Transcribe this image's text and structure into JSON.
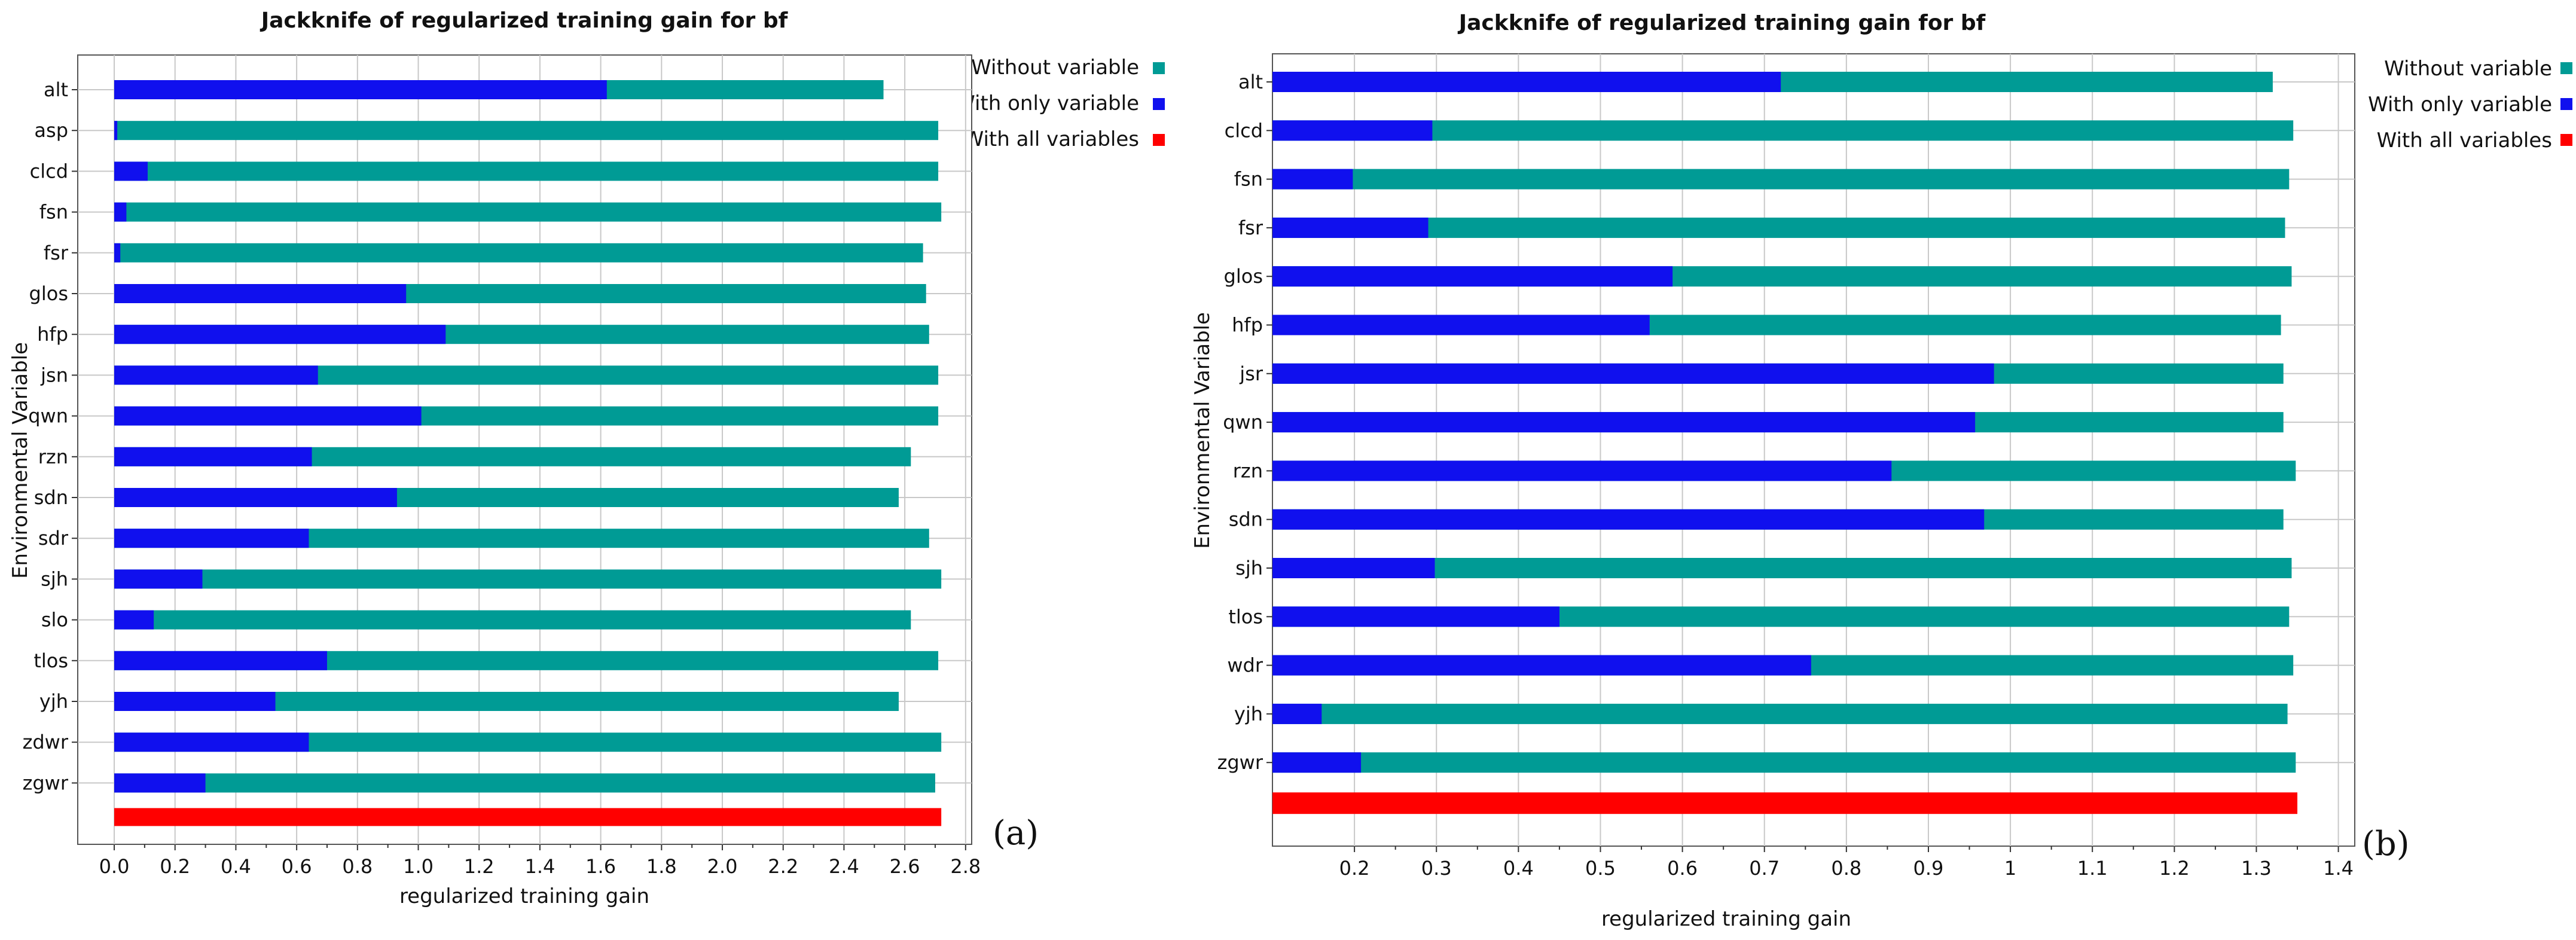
{
  "colors": {
    "without": "#009b95",
    "with_only": "#1010ee",
    "with_all": "#ff0000",
    "grid": "#c8c8c8",
    "frame": "#555555"
  },
  "legend": {
    "without_label": "Without variable",
    "with_only_label": "With only variable",
    "with_all_label": "With all variables"
  },
  "chart_data": [
    {
      "type": "bar",
      "orientation": "horizontal",
      "panel_label": "(a)",
      "title": "Jackknife of regularized training gain for bf",
      "xlabel": "regularized training gain",
      "ylabel": "Environmental Variable",
      "xlim": [
        -0.12,
        2.82
      ],
      "xticks": [
        "0.0",
        "0.2",
        "0.4",
        "0.6",
        "0.8",
        "1.0",
        "1.2",
        "1.4",
        "1.6",
        "1.8",
        "2.0",
        "2.2",
        "2.4",
        "2.6",
        "2.8"
      ],
      "xtick_values": [
        0,
        0.2,
        0.4,
        0.6,
        0.8,
        1.0,
        1.2,
        1.4,
        1.6,
        1.8,
        2.0,
        2.2,
        2.4,
        2.6,
        2.8
      ],
      "categories": [
        "alt",
        "asp",
        "clcd",
        "fsn",
        "fsr",
        "glos",
        "hfp",
        "jsn",
        "qwn",
        "rzn",
        "sdn",
        "sdr",
        "sjh",
        "slo",
        "tlos",
        "yjh",
        "zdwr",
        "zgwr"
      ],
      "series": [
        {
          "name": "Without variable",
          "values": [
            2.53,
            2.71,
            2.71,
            2.72,
            2.66,
            2.67,
            2.68,
            2.71,
            2.71,
            2.62,
            2.58,
            2.68,
            2.72,
            2.62,
            2.71,
            2.58,
            2.72,
            2.7
          ]
        },
        {
          "name": "With only variable",
          "values": [
            1.62,
            0.01,
            0.11,
            0.04,
            0.02,
            0.96,
            1.09,
            0.67,
            1.01,
            0.65,
            0.93,
            0.64,
            0.29,
            0.13,
            0.7,
            0.53,
            0.64,
            0.3
          ]
        }
      ],
      "with_all_variables": 2.72
    },
    {
      "type": "bar",
      "orientation": "horizontal",
      "panel_label": "(b)",
      "title": "Jackknife of regularized training gain for bf",
      "xlabel": "regularized training gain",
      "ylabel": "Environmental Variable",
      "xlim": [
        0.1,
        1.42
      ],
      "xticks": [
        "0.2",
        "0.3",
        "0.4",
        "0.5",
        "0.6",
        "0.7",
        "0.8",
        "0.9",
        "1",
        "1.1",
        "1.2",
        "1.3",
        "1.4"
      ],
      "xtick_values": [
        0.2,
        0.3,
        0.4,
        0.5,
        0.6,
        0.7,
        0.8,
        0.9,
        1.0,
        1.1,
        1.2,
        1.3,
        1.4
      ],
      "categories": [
        "alt",
        "clcd",
        "fsn",
        "fsr",
        "glos",
        "hfp",
        "jsr",
        "qwn",
        "rzn",
        "sdn",
        "sjh",
        "tlos",
        "wdr",
        "yjh",
        "zgwr"
      ],
      "series": [
        {
          "name": "Without variable",
          "values": [
            1.32,
            1.345,
            1.34,
            1.335,
            1.343,
            1.33,
            1.333,
            1.333,
            1.348,
            1.333,
            1.343,
            1.34,
            1.345,
            1.338,
            1.348
          ]
        },
        {
          "name": "With only variable",
          "values": [
            0.72,
            0.295,
            0.198,
            0.29,
            0.588,
            0.56,
            0.98,
            0.957,
            0.855,
            0.968,
            0.298,
            0.45,
            0.757,
            0.16,
            0.208
          ]
        }
      ],
      "with_all_variables": 1.35
    }
  ]
}
